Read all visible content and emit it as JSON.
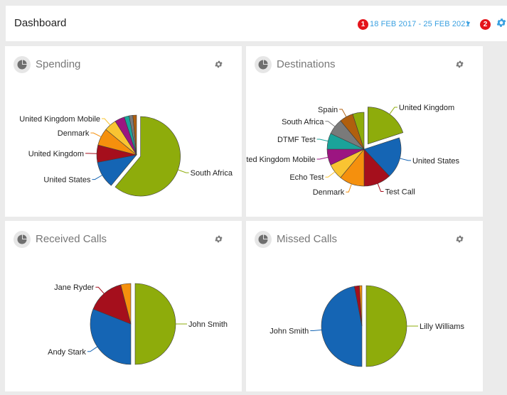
{
  "header": {
    "title": "Dashboard",
    "badge_date": "1",
    "date_range": "18 FEB 2017 - 25 FEB 2021",
    "badge_settings": "2",
    "accent_color": "#3aa0e0",
    "badge_color": "#e4141b"
  },
  "icons": {
    "card_icon": "pie-chart-icon",
    "settings": "gear-icon",
    "dropdown": "chevron-down-icon"
  },
  "cards": [
    {
      "title": "Spending"
    },
    {
      "title": "Destinations"
    },
    {
      "title": "Received Calls"
    },
    {
      "title": "Missed Calls"
    }
  ],
  "chart_data": [
    {
      "type": "pie",
      "title": "Spending",
      "slices": [
        {
          "label": "South Africa",
          "value": 61,
          "color": "#8eac0b"
        },
        {
          "label": "United States",
          "value": 11,
          "color": "#1565b4"
        },
        {
          "label": "United Kingdom",
          "value": 7,
          "color": "#a50f1c"
        },
        {
          "label": "Denmark",
          "value": 7,
          "color": "#f5900d"
        },
        {
          "label": "United Kingdom Mobile",
          "value": 5,
          "color": "#f9c432"
        },
        {
          "label": "",
          "value": 4,
          "color": "#9c1581"
        },
        {
          "label": "",
          "value": 2,
          "color": "#1aa39a"
        },
        {
          "label": "",
          "value": 1.5,
          "color": "#7a7a7a"
        },
        {
          "label": "",
          "value": 1.5,
          "color": "#b05f0e"
        }
      ]
    },
    {
      "type": "pie",
      "title": "Destinations",
      "slices": [
        {
          "label": "United Kingdom",
          "value": 20,
          "color": "#8eac0b"
        },
        {
          "label": "United States",
          "value": 18,
          "color": "#1565b4"
        },
        {
          "label": "Test Call",
          "value": 12,
          "color": "#a50f1c"
        },
        {
          "label": "Denmark",
          "value": 11,
          "color": "#f5900d"
        },
        {
          "label": "Echo Test",
          "value": 7,
          "color": "#f9c432"
        },
        {
          "label": "United Kingdom Mobile",
          "value": 7,
          "color": "#9c1581"
        },
        {
          "label": "DTMF Test",
          "value": 7,
          "color": "#1aa39a"
        },
        {
          "label": "South Africa",
          "value": 7,
          "color": "#7a7a7a"
        },
        {
          "label": "Spain",
          "value": 6,
          "color": "#b05f0e"
        },
        {
          "label": "",
          "value": 5,
          "color": "#8eac0b"
        }
      ]
    },
    {
      "type": "pie",
      "title": "Received Calls",
      "slices": [
        {
          "label": "John Smith",
          "value": 50,
          "color": "#8eac0b"
        },
        {
          "label": "Andy Stark",
          "value": 31,
          "color": "#1565b4"
        },
        {
          "label": "Jane Ryder",
          "value": 15,
          "color": "#a50f1c"
        },
        {
          "label": "",
          "value": 4,
          "color": "#f5900d"
        }
      ]
    },
    {
      "type": "pie",
      "title": "Missed Calls",
      "slices": [
        {
          "label": "Lilly Williams",
          "value": 50,
          "color": "#8eac0b"
        },
        {
          "label": "John Smith",
          "value": 47,
          "color": "#1565b4"
        },
        {
          "label": "",
          "value": 2,
          "color": "#a50f1c"
        },
        {
          "label": "",
          "value": 1,
          "color": "#f5900d"
        }
      ]
    }
  ]
}
